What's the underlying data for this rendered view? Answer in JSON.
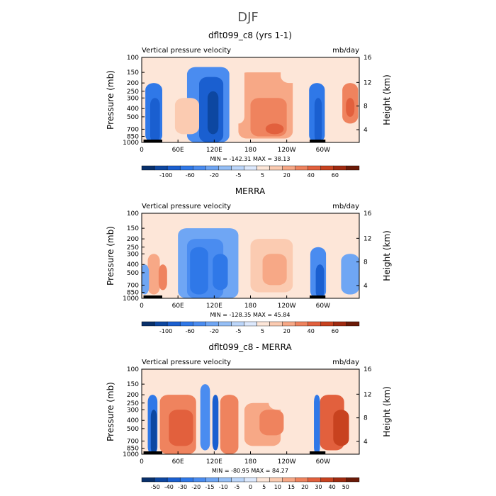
{
  "main_title": "DJF",
  "chart_data": [
    {
      "type": "heatmap",
      "title": "dflt099_c8 (yrs 1-1)",
      "left_string": "Vertical pressure velocity",
      "right_string": "mb/day",
      "ylabel": "Pressure (mb)",
      "y2label": "Height (km)",
      "x_ticks": [
        "0",
        "60E",
        "120E",
        "180",
        "120W",
        "60W"
      ],
      "y_ticks": [
        "100",
        "150",
        "200",
        "250",
        "300",
        "400",
        "500",
        "700",
        "850",
        "1000"
      ],
      "y2_ticks": [
        "16",
        "12",
        "8",
        "4"
      ],
      "stats": "MIN = -142.31   MAX = 38.13",
      "colorbar_ticks": [
        "-100",
        "-60",
        "-20",
        "-5",
        "5",
        "20",
        "40",
        "60"
      ],
      "colorbar_colors": [
        "#08306b",
        "#0d47a1",
        "#1a5fd0",
        "#2f78e8",
        "#4a8cf0",
        "#6fa6f4",
        "#95bff6",
        "#bcd6fa",
        "#dde9fd",
        "#fde6d8",
        "#fbcbb1",
        "#f7a886",
        "#ef835e",
        "#e2603d",
        "#c8421f",
        "#a02a10",
        "#6b1a07"
      ],
      "structure": "Strong ascent (blue) over the Maritime Continent/western Pacific (~90E-150E) and South America (~60W-90W) and Africa (~10E-40E); subsidence (red) over the central/eastern Pacific (~170E-130W) and the Atlantic (~30W-0)"
    },
    {
      "type": "heatmap",
      "title": "MERRA",
      "left_string": "Vertical pressure velocity",
      "right_string": "mb/day",
      "ylabel": "Pressure (mb)",
      "y2label": "Height (km)",
      "x_ticks": [
        "0",
        "60E",
        "120E",
        "180",
        "120W",
        "60W"
      ],
      "y_ticks": [
        "100",
        "150",
        "200",
        "250",
        "300",
        "400",
        "500",
        "700",
        "850",
        "1000"
      ],
      "y2_ticks": [
        "16",
        "12",
        "8",
        "4"
      ],
      "stats": "MIN = -128.35   MAX = 45.84",
      "colorbar_ticks": [
        "-100",
        "-60",
        "-20",
        "-5",
        "5",
        "20",
        "40",
        "60"
      ],
      "colorbar_colors": [
        "#08306b",
        "#0d47a1",
        "#1a5fd0",
        "#2f78e8",
        "#4a8cf0",
        "#6fa6f4",
        "#95bff6",
        "#bcd6fa",
        "#dde9fd",
        "#fde6d8",
        "#fbcbb1",
        "#f7a886",
        "#ef835e",
        "#e2603d",
        "#c8421f",
        "#a02a10",
        "#6b1a07"
      ],
      "structure": "Broad ascent (blue) from ~60E to ~160E and over South America (~60W-80W); subsidence (red) over the eastern Pacific (~150W-110W) and near Africa (~10E-40E) at lower levels"
    },
    {
      "type": "heatmap",
      "title": "dflt099_c8 - MERRA",
      "left_string": "Vertical pressure velocity",
      "right_string": "mb/day",
      "ylabel": "Pressure (mb)",
      "y2label": "Height (km)",
      "x_ticks": [
        "0",
        "60E",
        "120E",
        "180",
        "120W",
        "60W"
      ],
      "y_ticks": [
        "100",
        "150",
        "200",
        "250",
        "300",
        "400",
        "500",
        "700",
        "850",
        "1000"
      ],
      "y2_ticks": [
        "16",
        "12",
        "8",
        "4"
      ],
      "stats": "MIN = -80.95   MAX = 84.27",
      "colorbar_ticks": [
        "-50",
        "-40",
        "-30",
        "-20",
        "-15",
        "-10",
        "-5",
        "0",
        "5",
        "10",
        "15",
        "20",
        "30",
        "40",
        "50"
      ],
      "colorbar_colors": [
        "#08306b",
        "#0d47a1",
        "#1a5fd0",
        "#2f78e8",
        "#4a8cf0",
        "#6fa6f4",
        "#95bff6",
        "#bcd6fa",
        "#dde9fd",
        "#fde6d8",
        "#fbcbb1",
        "#f7a886",
        "#ef835e",
        "#e2603d",
        "#c8421f",
        "#a02a10",
        "#6b1a07"
      ],
      "structure": "Difference: negative (blue) bands near Africa (~10E-30E), ~110E-130E and ~60W; positive (red) over ~40E-100E, the central/eastern Pacific and ~60W-0"
    }
  ]
}
